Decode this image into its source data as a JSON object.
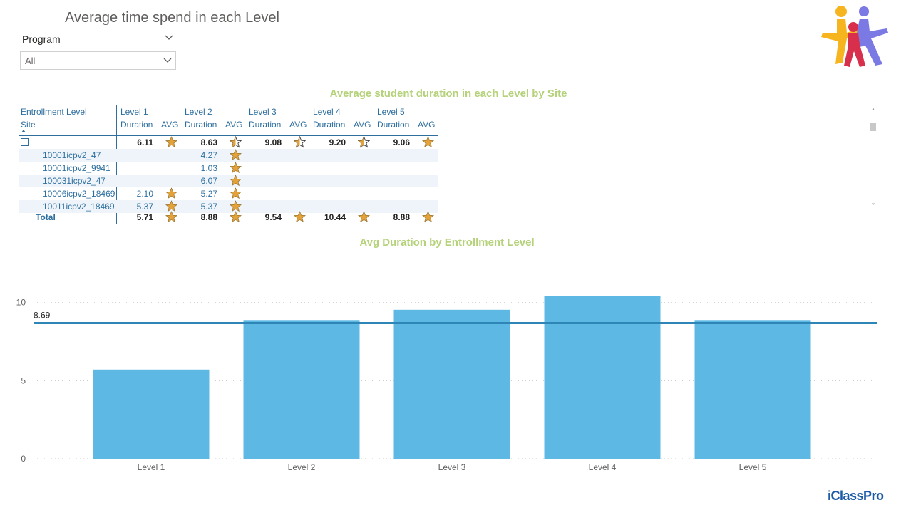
{
  "page": {
    "title": "Average time spend in each Level",
    "brand": "iClassPro",
    "colors": {
      "accent_title": "#b5d27a",
      "bar": "#5db8e4",
      "avg_line": "#2e86b6",
      "table_text": "#2e6f9f",
      "star": "#e3a23a"
    }
  },
  "slicer": {
    "label": "Program",
    "value": "All",
    "icon": "chevron-down-icon"
  },
  "matrix": {
    "title": "Average student duration in each Level by Site",
    "header_row1": [
      "Entrollment Level",
      "Level 1",
      "Level 2",
      "Level 3",
      "Level 4",
      "Level 5"
    ],
    "header_row2": [
      "Site",
      "Duration",
      "AVG",
      "Duration",
      "AVG",
      "Duration",
      "AVG",
      "Duration",
      "AVG",
      "Duration",
      "AVG"
    ],
    "group_row": {
      "values": [
        "6.11",
        "8.63",
        "9.08",
        "9.20",
        "9.06"
      ],
      "stars": [
        "full",
        "partial",
        "partial",
        "partial",
        "full"
      ]
    },
    "rows": [
      {
        "site": "10001icpv2_47",
        "values": [
          "",
          "4.27",
          "",
          "",
          ""
        ],
        "stars": [
          "",
          "full",
          "",
          "",
          ""
        ]
      },
      {
        "site": "10001icpv2_9941",
        "values": [
          "",
          "1.03",
          "",
          "",
          ""
        ],
        "stars": [
          "",
          "full",
          "",
          "",
          ""
        ]
      },
      {
        "site": "100031icpv2_47",
        "values": [
          "",
          "6.07",
          "",
          "",
          ""
        ],
        "stars": [
          "",
          "full",
          "",
          "",
          ""
        ]
      },
      {
        "site": "10006icpv2_18469",
        "values": [
          "2.10",
          "5.27",
          "",
          "",
          ""
        ],
        "stars": [
          "full",
          "full",
          "",
          "",
          ""
        ]
      },
      {
        "site": "10011icpv2_18469",
        "values": [
          "5.37",
          "5.37",
          "",
          "",
          ""
        ],
        "stars": [
          "full",
          "full",
          "",
          "",
          ""
        ]
      }
    ],
    "total": {
      "label": "Total",
      "values": [
        "5.71",
        "8.88",
        "9.54",
        "10.44",
        "8.88"
      ],
      "stars": [
        "full",
        "full",
        "full",
        "full",
        "full"
      ]
    }
  },
  "chart_data": {
    "type": "bar",
    "title": "Avg Duration by Entrollment Level",
    "categories": [
      "Level 1",
      "Level 2",
      "Level 3",
      "Level 4",
      "Level 5"
    ],
    "values": [
      5.71,
      8.88,
      9.54,
      10.44,
      8.88
    ],
    "reference_line": {
      "value": 8.69,
      "label": "8.69"
    },
    "yticks": [
      0,
      5,
      10
    ],
    "ylim": [
      0,
      10.9
    ],
    "grid": true,
    "xlabel": "",
    "ylabel": ""
  }
}
